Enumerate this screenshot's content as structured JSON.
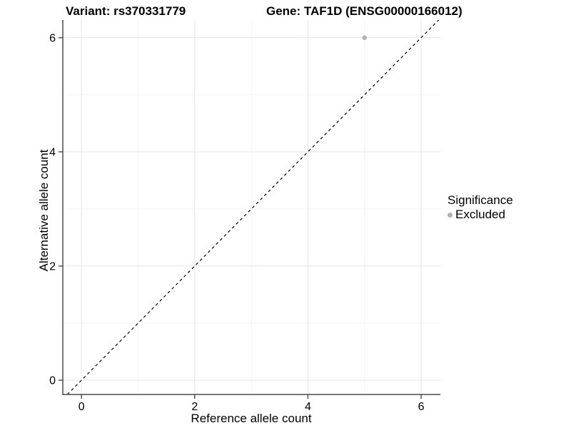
{
  "titles": {
    "variant": "Variant: rs370331779",
    "gene": "Gene: TAF1D (ENSG00000166012)"
  },
  "axes": {
    "xlabel": "Reference allele count",
    "ylabel": "Alternative allele count"
  },
  "legend": {
    "title": "Significance",
    "entries": [
      {
        "label": "Excluded",
        "color": "#b0b0b0"
      }
    ]
  },
  "chart_data": {
    "type": "scatter",
    "title": "Variant: rs370331779",
    "subtitle": "Gene: TAF1D (ENSG00000166012)",
    "xlabel": "Reference allele count",
    "ylabel": "Alternative allele count",
    "xlim": [
      -0.33,
      6.34
    ],
    "ylim": [
      -0.25,
      6.31
    ],
    "xticks": [
      0,
      2,
      4,
      6
    ],
    "yticks": [
      0,
      2,
      4,
      6
    ],
    "minor_xticks": [
      1,
      3,
      5
    ],
    "minor_yticks": [
      1,
      3,
      5
    ],
    "grid": true,
    "legend_position": "right",
    "series": [
      {
        "name": "Excluded",
        "color": "#b0b0b0",
        "points": [
          {
            "x": 5,
            "y": 6
          }
        ]
      }
    ],
    "reference_line": {
      "kind": "identity y=x",
      "style": "dashed",
      "color": "#000000"
    },
    "colors": {
      "background": "#ffffff",
      "major_grid": "#e4e4e4",
      "minor_grid": "#f3f3f3",
      "axis": "#4a4a4a",
      "text": "#000000"
    }
  }
}
